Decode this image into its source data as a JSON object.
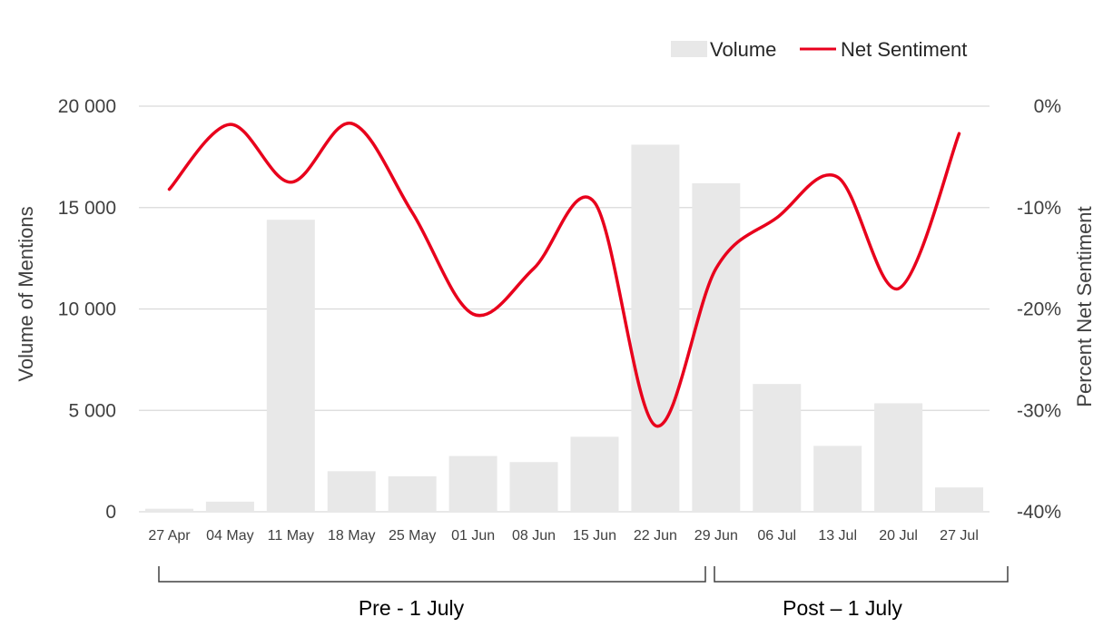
{
  "chart_data": {
    "type": "bar",
    "categories": [
      "27 Apr",
      "04 May",
      "11 May",
      "18 May",
      "25 May",
      "01 Jun",
      "08 Jun",
      "15 Jun",
      "22 Jun",
      "29 Jun",
      "06 Jul",
      "13 Jul",
      "20 Jul",
      "27 Jul"
    ],
    "series": [
      {
        "name": "Volume",
        "type": "bar",
        "axis": "left",
        "color": "#e8e8e8",
        "values": [
          150,
          500,
          14400,
          2000,
          1750,
          2750,
          2450,
          3700,
          18100,
          16200,
          6300,
          3250,
          5350,
          1200
        ]
      },
      {
        "name": "Net Sentiment",
        "type": "line",
        "axis": "right",
        "color": "#e8001c",
        "values": [
          -8.2,
          -1.8,
          -7.5,
          -1.7,
          -10.5,
          -20.5,
          -16.0,
          -9.5,
          -31.5,
          -16.0,
          -11.0,
          -7.0,
          -18.0,
          -2.7
        ]
      }
    ],
    "ylabel": "Volume of Mentions",
    "y2label": "Percent Net Sentiment",
    "ylim": [
      0,
      20000
    ],
    "y2lim": [
      -40,
      0
    ],
    "yticks": [
      "0",
      "5 000",
      "10 000",
      "15 000",
      "20 000"
    ],
    "y2ticks": [
      "-40%",
      "-30%",
      "-20%",
      "-10%",
      "0%"
    ],
    "legend_position": "top-right",
    "groups": [
      {
        "label": "Pre - 1 July",
        "from": "27 Apr",
        "to": "29 Jun"
      },
      {
        "label": "Post – 1 July",
        "from": "29 Jun",
        "to": "27 Jul"
      }
    ]
  }
}
